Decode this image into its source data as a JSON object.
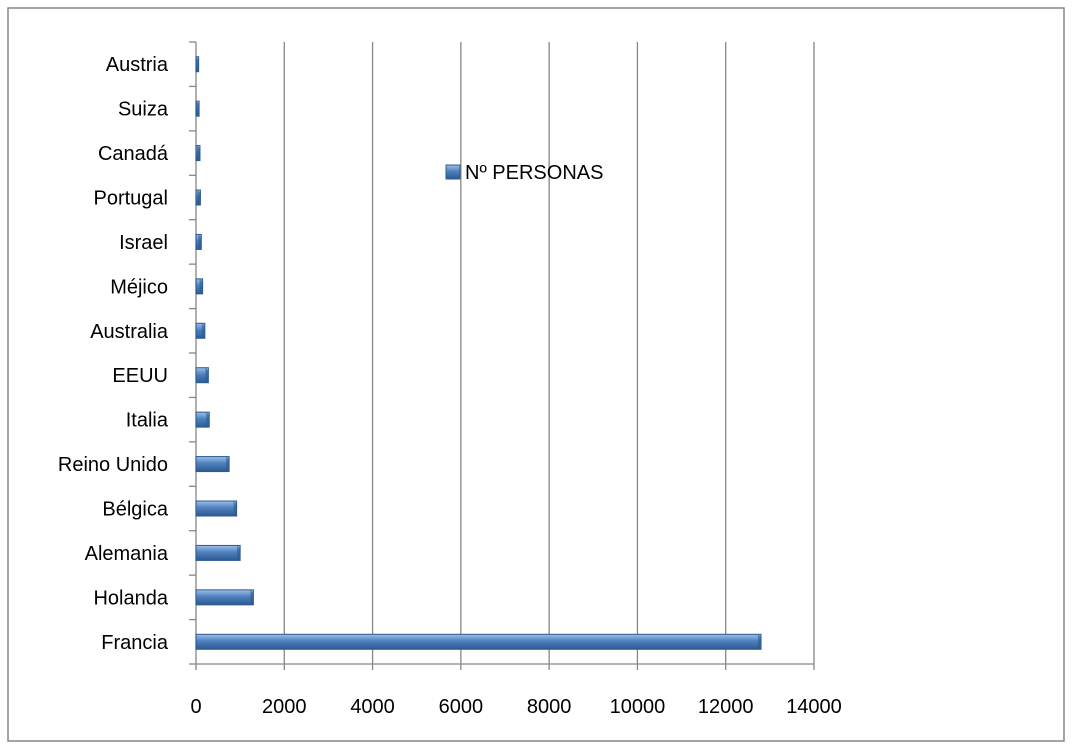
{
  "chart_data": {
    "type": "bar",
    "orientation": "horizontal",
    "title": "",
    "xlabel": "",
    "ylabel": "",
    "categories": [
      "Francia",
      "Holanda",
      "Alemania",
      "Bélgica",
      "Reino Unido",
      "Italia",
      "EEUU",
      "Australia",
      "Méjico",
      "Israel",
      "Portugal",
      "Canadá",
      "Suiza",
      "Austria"
    ],
    "series": [
      {
        "name": "Nº PERSONAS",
        "values": [
          12800,
          1300,
          1000,
          920,
          750,
          300,
          280,
          200,
          150,
          120,
          100,
          90,
          70,
          60
        ],
        "color": "#4f81bd"
      }
    ],
    "xlim": [
      0,
      14000
    ],
    "xticks": [
      0,
      2000,
      4000,
      6000,
      8000,
      10000,
      12000,
      14000
    ],
    "grid": "vertical-major",
    "legend": "top-center"
  }
}
